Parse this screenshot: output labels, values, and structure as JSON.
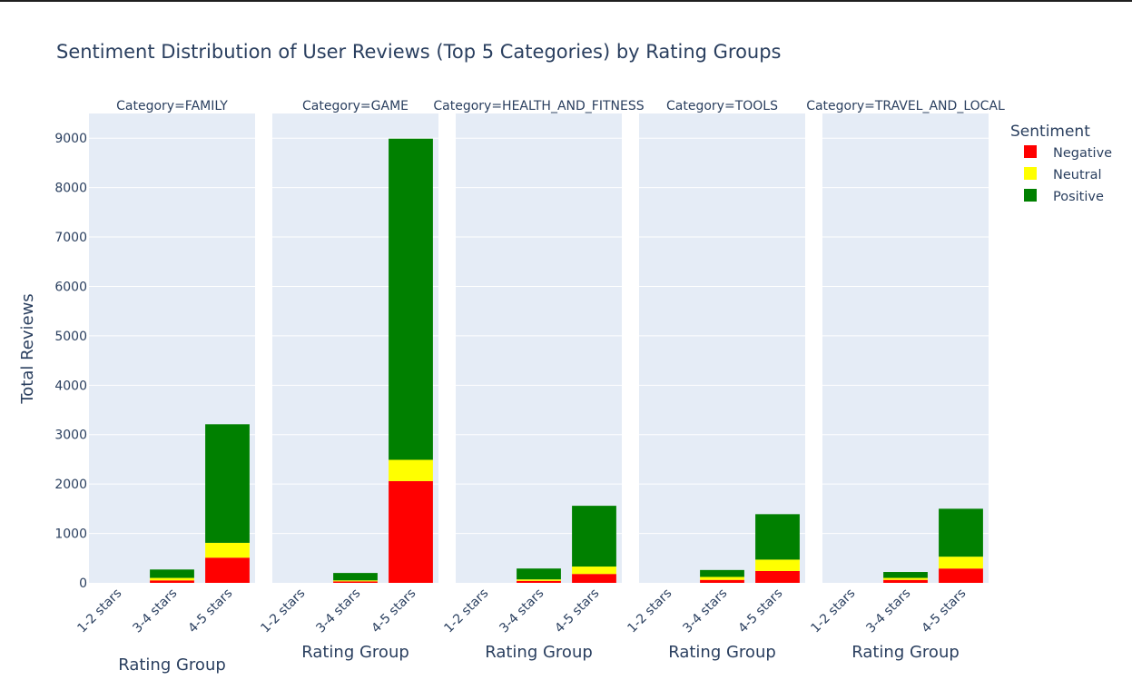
{
  "chart_data": {
    "type": "bar",
    "title": "Sentiment Distribution of User Reviews (Top 5 Categories) by Rating Groups",
    "xlabel": "Rating Group",
    "ylabel": "Total Reviews",
    "ylim": [
      0,
      9500
    ],
    "yticks": [
      0,
      1000,
      2000,
      3000,
      4000,
      5000,
      6000,
      7000,
      8000,
      9000
    ],
    "stacked": true,
    "grid": true,
    "legend_title": "Sentiment",
    "legend_position": "right",
    "categories": [
      "1-2 stars",
      "3-4 stars",
      "4-5 stars"
    ],
    "series_colors": {
      "Negative": "#ff0000",
      "Neutral": "#ffff00",
      "Positive": "#008000"
    },
    "legend": [
      {
        "name": "Negative",
        "color": "#ff0000"
      },
      {
        "name": "Neutral",
        "color": "#ffff00"
      },
      {
        "name": "Positive",
        "color": "#008000"
      }
    ],
    "facets": [
      {
        "label": "Category=FAMILY",
        "series": [
          {
            "name": "Negative",
            "values": [
              0,
              50,
              510
            ]
          },
          {
            "name": "Neutral",
            "values": [
              0,
              50,
              300
            ]
          },
          {
            "name": "Positive",
            "values": [
              0,
              170,
              2400
            ]
          }
        ]
      },
      {
        "label": "Category=GAME",
        "series": [
          {
            "name": "Negative",
            "values": [
              0,
              30,
              2060
            ]
          },
          {
            "name": "Neutral",
            "values": [
              0,
              20,
              430
            ]
          },
          {
            "name": "Positive",
            "values": [
              0,
              150,
              6500
            ]
          }
        ]
      },
      {
        "label": "Category=HEALTH_AND_FITNESS",
        "series": [
          {
            "name": "Negative",
            "values": [
              0,
              40,
              180
            ]
          },
          {
            "name": "Neutral",
            "values": [
              0,
              30,
              150
            ]
          },
          {
            "name": "Positive",
            "values": [
              0,
              220,
              1230
            ]
          }
        ]
      },
      {
        "label": "Category=TOOLS",
        "series": [
          {
            "name": "Negative",
            "values": [
              0,
              60,
              240
            ]
          },
          {
            "name": "Neutral",
            "values": [
              0,
              60,
              230
            ]
          },
          {
            "name": "Positive",
            "values": [
              0,
              140,
              920
            ]
          }
        ]
      },
      {
        "label": "Category=TRAVEL_AND_LOCAL",
        "series": [
          {
            "name": "Negative",
            "values": [
              0,
              60,
              290
            ]
          },
          {
            "name": "Neutral",
            "values": [
              0,
              40,
              240
            ]
          },
          {
            "name": "Positive",
            "values": [
              0,
              120,
              970
            ]
          }
        ]
      }
    ]
  }
}
